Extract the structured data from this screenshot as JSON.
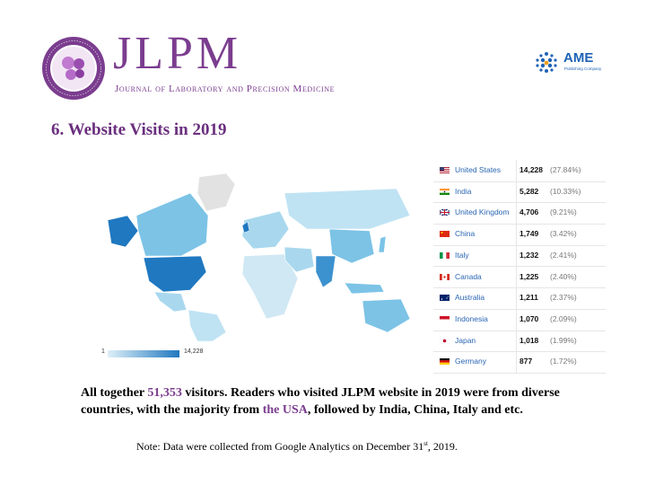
{
  "header": {
    "journal_abbrev": "JLPM",
    "journal_name": "Journal of Laboratory and Precision Medicine",
    "publisher_logo_text": "AME",
    "publisher_logo_subtext": "Publishing Company"
  },
  "section_title": "6. Website Visits in 2019",
  "map": {
    "legend_min": "1",
    "legend_max": "14,228",
    "colors": {
      "low": "#cfe8f3",
      "mid": "#7cc3e6",
      "high": "#1f78c0",
      "none": "#e2e2e2"
    }
  },
  "table": {
    "rows": [
      {
        "country": "United States",
        "visits": "14,228",
        "pct": "(27.84%)",
        "flag": "us-flag-icon"
      },
      {
        "country": "India",
        "visits": "5,282",
        "pct": "(10.33%)",
        "flag": "in-flag-icon"
      },
      {
        "country": "United Kingdom",
        "visits": "4,706",
        "pct": "(9.21%)",
        "flag": "gb-flag-icon"
      },
      {
        "country": "China",
        "visits": "1,749",
        "pct": "(3.42%)",
        "flag": "cn-flag-icon"
      },
      {
        "country": "Italy",
        "visits": "1,232",
        "pct": "(2.41%)",
        "flag": "it-flag-icon"
      },
      {
        "country": "Canada",
        "visits": "1,225",
        "pct": "(2.40%)",
        "flag": "ca-flag-icon"
      },
      {
        "country": "Australia",
        "visits": "1,211",
        "pct": "(2.37%)",
        "flag": "au-flag-icon"
      },
      {
        "country": "Indonesia",
        "visits": "1,070",
        "pct": "(2.09%)",
        "flag": "id-flag-icon"
      },
      {
        "country": "Japan",
        "visits": "1,018",
        "pct": "(1.99%)",
        "flag": "jp-flag-icon"
      },
      {
        "country": "Germany",
        "visits": "877",
        "pct": "(1.72%)",
        "flag": "de-flag-icon"
      }
    ]
  },
  "summary": {
    "part1": "All together ",
    "total": "51,353",
    "part2": " visitors. Readers who visited JLPM website in 2019 were from diverse countries, with the majority from ",
    "top_country": "the USA",
    "part3": ", followed by India, China, Italy and etc."
  },
  "note": {
    "text_before": "Note: Data were collected from Google Analytics on December 31",
    "superscript": "st",
    "text_after": ", 2019."
  }
}
